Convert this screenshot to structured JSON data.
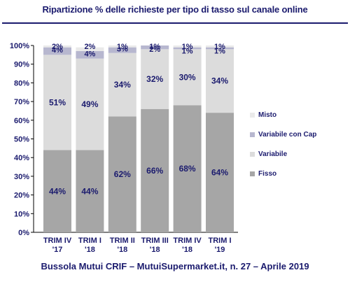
{
  "title": "Ripartizione % delle richieste per tipo di tasso sul canale online",
  "footer": "Bussola Mutui CRIF – MutuiSupermarket.it, n. 27 – Aprile 2019",
  "chart_data": {
    "type": "bar",
    "stacked": true,
    "categories": [
      [
        "TRIM IV",
        "'17"
      ],
      [
        "TRIM I",
        "'18"
      ],
      [
        "TRIM II",
        "'18"
      ],
      [
        "TRIM III",
        "'18"
      ],
      [
        "TRIM IV",
        "'18"
      ],
      [
        "TRIM I",
        "'19"
      ]
    ],
    "series": [
      {
        "name": "Fisso",
        "color": "#a6a6a6",
        "values": [
          44,
          44,
          62,
          66,
          68,
          64
        ],
        "labels": [
          "44%",
          "44%",
          "62%",
          "66%",
          "68%",
          "64%"
        ]
      },
      {
        "name": "Variabile",
        "color": "#dcdcdc",
        "values": [
          51,
          49,
          34,
          32,
          30,
          34
        ],
        "labels": [
          "51%",
          "49%",
          "34%",
          "32%",
          "30%",
          "34%"
        ]
      },
      {
        "name": "Variabile con Cap",
        "color": "#b7b7cf",
        "values": [
          4,
          4,
          3,
          2,
          1,
          1
        ],
        "labels": [
          "4%",
          "4%",
          "3%",
          "2%",
          "1%",
          "1%"
        ]
      },
      {
        "name": "Misto",
        "color": "#eaeaea",
        "values": [
          2,
          2,
          1,
          1,
          1,
          1
        ],
        "labels": [
          "2%",
          "2%",
          "1%",
          "1%",
          "1%",
          "1%"
        ]
      }
    ],
    "ylim": [
      0,
      100
    ],
    "yticks": [
      "0%",
      "10%",
      "20%",
      "30%",
      "40%",
      "50%",
      "60%",
      "70%",
      "80%",
      "90%",
      "100%"
    ],
    "legend_order": [
      "Misto",
      "Variabile con Cap",
      "Variabile",
      "Fisso"
    ],
    "legend_position": "right",
    "grid": false
  }
}
